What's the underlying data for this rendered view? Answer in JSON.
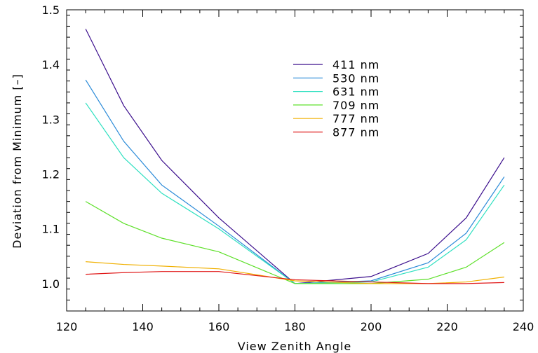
{
  "chart_data": {
    "type": "line",
    "title": "",
    "xlabel": "View Zenith Angle",
    "ylabel": "Deviation from Minimum [–]",
    "xlim": [
      120,
      240
    ],
    "ylim": [
      0.95,
      1.5
    ],
    "x_ticks": [
      "120",
      "140",
      "160",
      "180",
      "200",
      "220",
      "240"
    ],
    "y_ticks": [
      "1.0",
      "1.1",
      "1.2",
      "1.3",
      "1.4",
      "1.5"
    ],
    "legend_position": "upper-center",
    "grid": false,
    "x": [
      125,
      135,
      145,
      160,
      180,
      200,
      215,
      225,
      235
    ],
    "series": [
      {
        "name": "411 nm",
        "color": "#3a0d8c",
        "values": [
          1.465,
          1.325,
          1.225,
          1.12,
          1.0,
          1.013,
          1.055,
          1.12,
          1.23
        ]
      },
      {
        "name": "530 nm",
        "color": "#2a8ad8",
        "values": [
          1.372,
          1.26,
          1.18,
          1.105,
          1.0,
          1.005,
          1.038,
          1.092,
          1.195
        ]
      },
      {
        "name": "631 nm",
        "color": "#2ee0c0",
        "values": [
          1.33,
          1.23,
          1.165,
          1.1,
          1.0,
          1.003,
          1.03,
          1.08,
          1.18
        ]
      },
      {
        "name": "709 nm",
        "color": "#5ee02a",
        "values": [
          1.15,
          1.11,
          1.083,
          1.058,
          1.0,
          1.0,
          1.008,
          1.03,
          1.075
        ]
      },
      {
        "name": "777 nm",
        "color": "#f0b000",
        "values": [
          1.04,
          1.035,
          1.032,
          1.027,
          1.005,
          1.0,
          1.0,
          1.003,
          1.012
        ]
      },
      {
        "name": "877 nm",
        "color": "#e01818",
        "values": [
          1.017,
          1.02,
          1.022,
          1.022,
          1.007,
          1.003,
          1.0,
          1.0,
          1.002
        ]
      }
    ]
  }
}
